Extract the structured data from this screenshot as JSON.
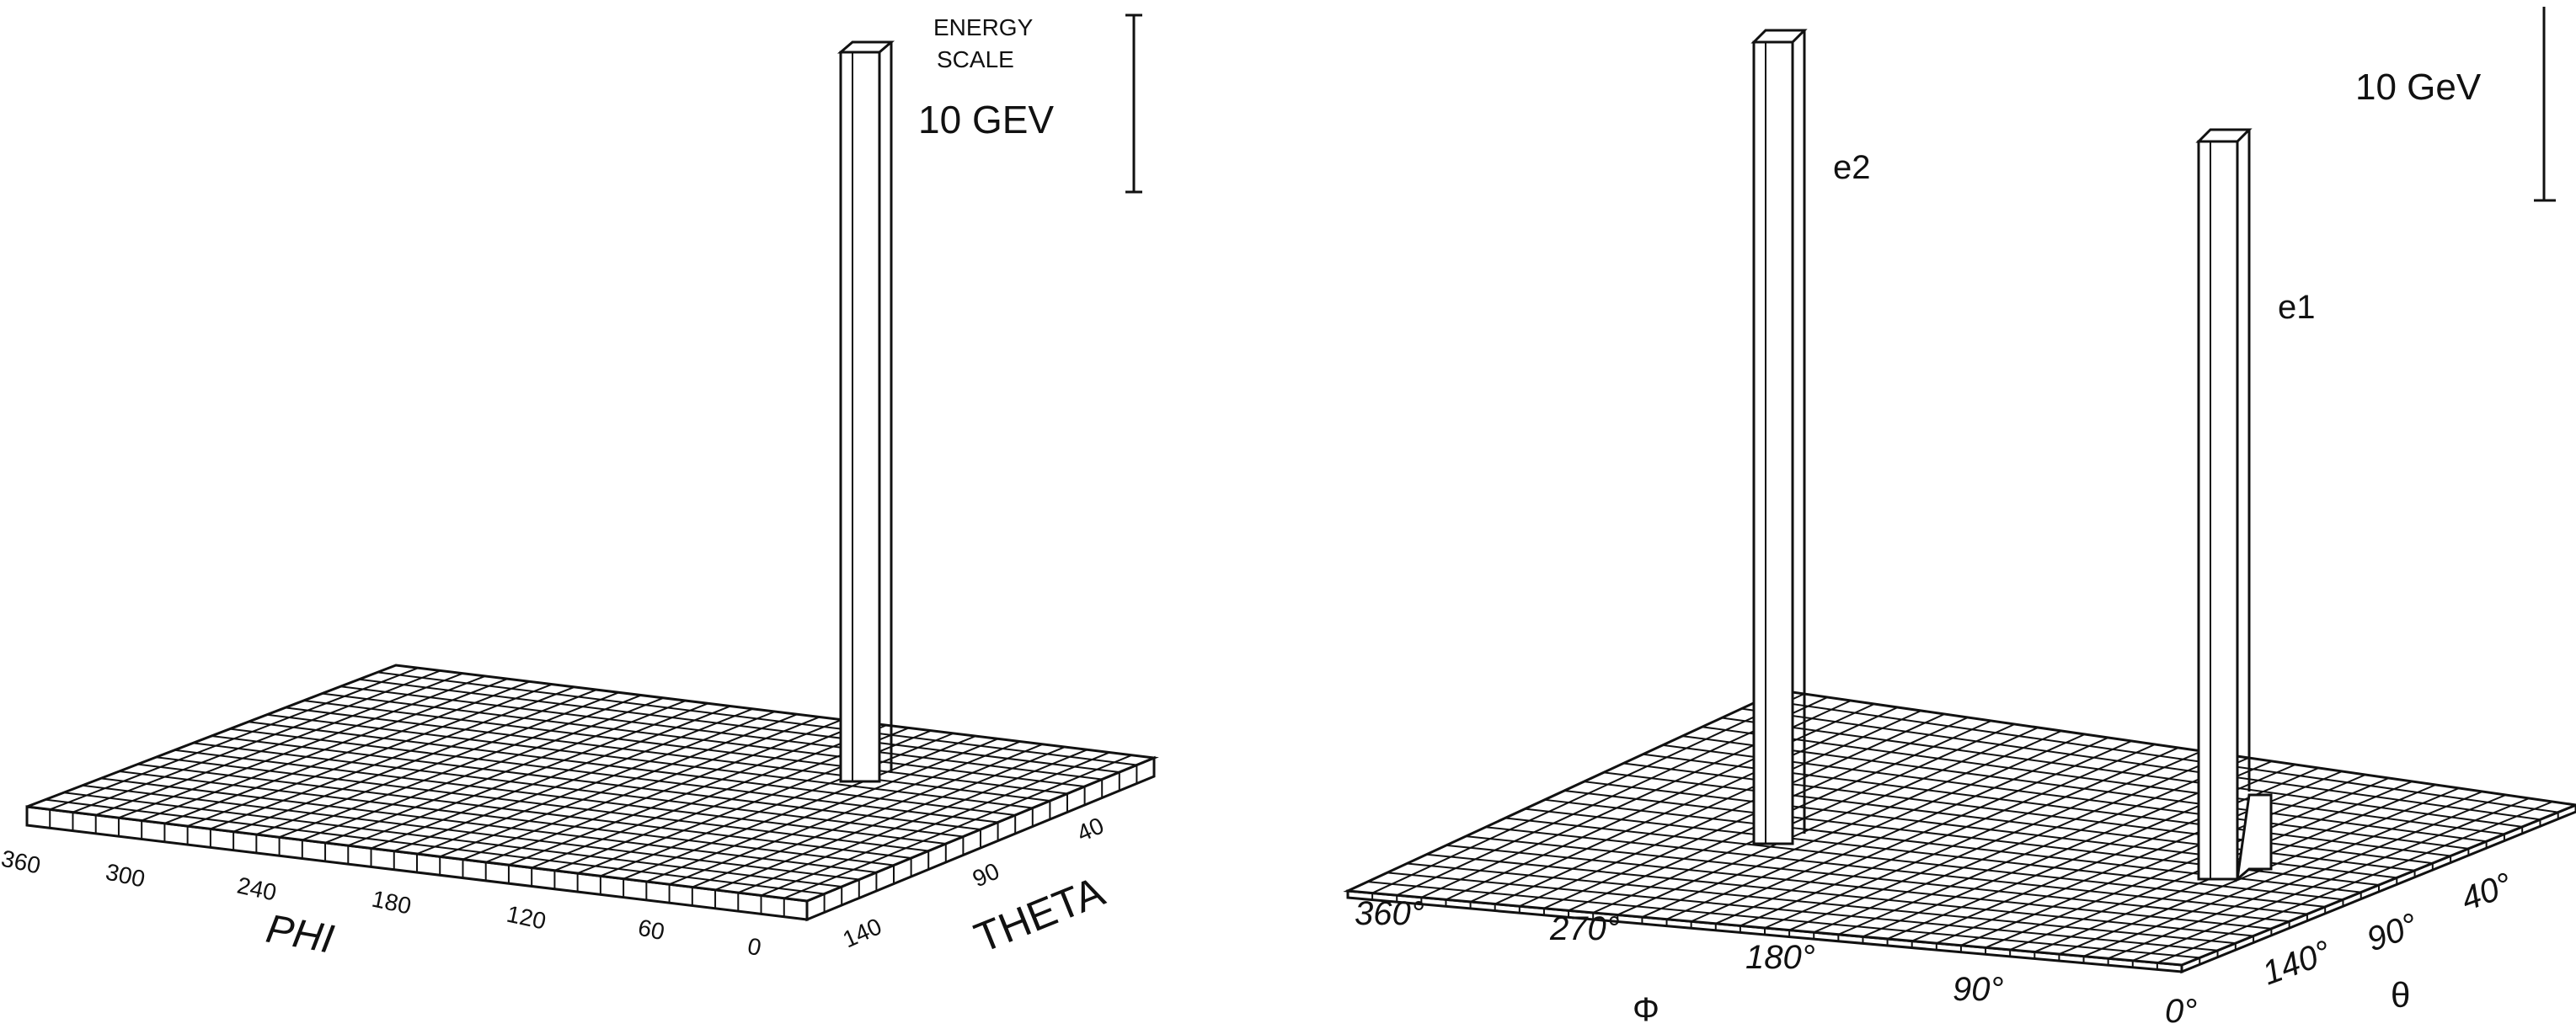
{
  "panels": [
    {
      "id": "left",
      "phi_axis_label": "PHI",
      "theta_axis_label": "THETA",
      "phi_ticks": [
        "360",
        "300",
        "240",
        "180",
        "120",
        "60",
        "0"
      ],
      "theta_ticks": [
        "140",
        "90",
        "40"
      ],
      "scale_label_line1": "ENERGY",
      "scale_label_line2": "SCALE",
      "scale_value": "10  GEV",
      "towers": [
        {
          "label": "",
          "energy_fraction": 1.0
        }
      ]
    },
    {
      "id": "right",
      "phi_axis_label": "Φ",
      "theta_axis_label": "θ",
      "phi_ticks": [
        "360°",
        "270°",
        "180°",
        "90°",
        "0°"
      ],
      "theta_ticks": [
        "140°",
        "90°",
        "40°"
      ],
      "scale_value": "10 GeV",
      "towers": [
        {
          "label": "e2",
          "energy_fraction": 1.0
        },
        {
          "label": "e1",
          "energy_fraction": 1.0
        }
      ]
    }
  ]
}
